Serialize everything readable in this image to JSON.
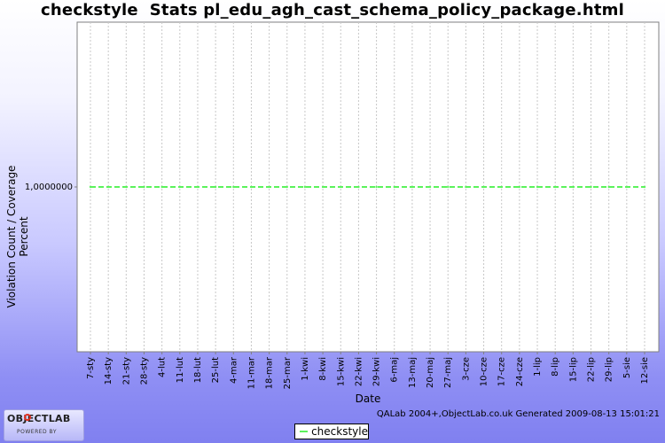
{
  "title": "checkstyle  Stats pl_edu_agh_cast_schema_policy_package.html",
  "footer": "QALab 2004+,ObjectLab.co.uk Generated 2009-08-13 15:01:21",
  "logo": {
    "text": "OBJECTLAB",
    "tagline": "POWERED BY"
  },
  "colors": {
    "series": "#5cf25c",
    "plot_bg": "#ffffff",
    "grid": "#c8c8c8"
  },
  "chart_data": {
    "type": "line",
    "title": "checkstyle  Stats pl_edu_agh_cast_schema_policy_package.html",
    "xlabel": "Date",
    "ylabel": "Violation Count / Coverage Percent",
    "categories": [
      "7-sty",
      "14-sty",
      "21-sty",
      "28-sty",
      "4-lut",
      "11-lut",
      "18-lut",
      "25-lut",
      "4-mar",
      "11-mar",
      "18-mar",
      "25-mar",
      "1-kwi",
      "8-kwi",
      "15-kwi",
      "22-kwi",
      "29-kwi",
      "6-maj",
      "13-maj",
      "20-maj",
      "27-maj",
      "3-cze",
      "10-cze",
      "17-cze",
      "24-cze",
      "1-lip",
      "8-lip",
      "15-lip",
      "22-lip",
      "29-lip",
      "5-sie",
      "12-sie"
    ],
    "y_ticks": [
      "1,0000000"
    ],
    "ylim": [
      0,
      2
    ],
    "grid": true,
    "legend_position": "bottom",
    "series": [
      {
        "name": "checkstyle",
        "color": "#5cf25c",
        "style": "dashed",
        "values": [
          1,
          1,
          1,
          1,
          1,
          1,
          1,
          1,
          1,
          1,
          1,
          1,
          1,
          1,
          1,
          1,
          1,
          1,
          1,
          1,
          1,
          1,
          1,
          1,
          1,
          1,
          1,
          1,
          1,
          1,
          1,
          1
        ]
      }
    ]
  }
}
